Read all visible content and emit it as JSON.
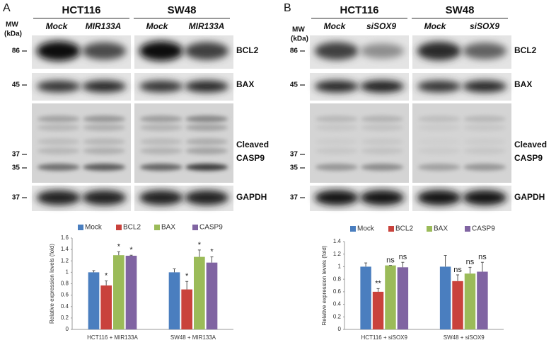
{
  "panels": [
    {
      "label": "A",
      "mw_title": [
        "MW",
        "(kDa)"
      ],
      "cell_lines": [
        "HCT116",
        "SW48"
      ],
      "conditions": [
        "Mock",
        "MIR133A",
        "Mock",
        "MIR133A"
      ],
      "proteins": [
        "BCL2",
        "BAX",
        "Cleaved",
        "CASP9",
        "GAPDH"
      ],
      "markers": [
        "86",
        "45",
        "37",
        "35",
        "37"
      ]
    },
    {
      "label": "B",
      "mw_title": [
        "MW",
        "(kDa)"
      ],
      "cell_lines": [
        "HCT116",
        "SW48"
      ],
      "conditions": [
        "Mock",
        "siSOX9",
        "Mock",
        "siSOX9"
      ],
      "proteins": [
        "BCL2",
        "BAX",
        "Cleaved",
        "CASP9",
        "GAPDH"
      ],
      "markers": [
        "86",
        "45",
        "37",
        "35",
        "37"
      ]
    }
  ],
  "chart_data": [
    {
      "type": "bar",
      "y_label": "Relative expression levels (fold)",
      "categories": [
        "HCT116 + MIR133A",
        "SW48 + MIR133A"
      ],
      "series": [
        {
          "name": "Mock",
          "color": "#4a7ebf",
          "values": [
            1,
            1
          ],
          "errors": [
            0.03,
            0.06
          ]
        },
        {
          "name": "BCL2",
          "color": "#c9423c",
          "values": [
            0.77,
            0.7
          ],
          "errors": [
            0.08,
            0.14
          ],
          "annotations": [
            "*",
            "*"
          ]
        },
        {
          "name": "BAX",
          "color": "#9bbb59",
          "values": [
            1.3,
            1.27
          ],
          "errors": [
            0.06,
            0.12
          ],
          "annotations": [
            "*",
            "*"
          ]
        },
        {
          "name": "CASP9",
          "color": "#8064a2",
          "values": [
            1.29,
            1.17
          ],
          "errors": [
            0.01,
            0.1
          ],
          "annotations": [
            "*",
            "*"
          ]
        }
      ],
      "ylim": [
        0,
        1.6
      ],
      "yticks": [
        0,
        0.2,
        0.4,
        0.6,
        0.8,
        1,
        1.2,
        1.4,
        1.6
      ],
      "legend": "top"
    },
    {
      "type": "bar",
      "y_label": "Relative expression levels (fold)",
      "categories": [
        "HCT116 + siSOX9",
        "SW48 + siSOX9"
      ],
      "series": [
        {
          "name": "Mock",
          "color": "#4a7ebf",
          "values": [
            1,
            1
          ],
          "errors": [
            0.06,
            0.18
          ]
        },
        {
          "name": "BCL2",
          "color": "#c9423c",
          "values": [
            0.6,
            0.77
          ],
          "errors": [
            0.05,
            0.1
          ],
          "annotations": [
            "**",
            "ns"
          ]
        },
        {
          "name": "BAX",
          "color": "#9bbb59",
          "values": [
            1.02,
            0.89
          ],
          "errors": [
            0,
            0.1
          ],
          "annotations": [
            "ns",
            "ns"
          ]
        },
        {
          "name": "CASP9",
          "color": "#8064a2",
          "values": [
            0.99,
            0.92
          ],
          "errors": [
            0.08,
            0.15
          ],
          "annotations": [
            "ns",
            "ns"
          ]
        }
      ],
      "ylim": [
        0,
        1.4
      ],
      "yticks": [
        0,
        0.2,
        0.4,
        0.6,
        0.8,
        1,
        1.2,
        1.4
      ],
      "legend": "top"
    }
  ]
}
